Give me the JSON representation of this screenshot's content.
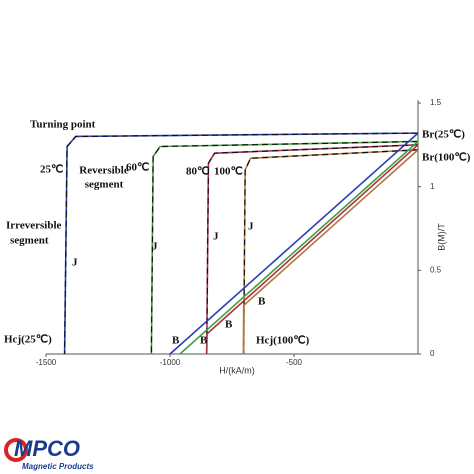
{
  "chart_data": {
    "type": "line",
    "xlabel": "H/(kA/m)",
    "ylabel": "B(M)/T",
    "xlim": [
      -1500,
      0
    ],
    "ylim": [
      0,
      1.5
    ],
    "xticks": [
      -1500,
      -1000,
      -500
    ],
    "yticks": [
      0,
      0.5,
      1,
      1.5
    ],
    "series": [
      {
        "color": "#2b3fb0",
        "x": [
          0,
          -1380,
          -1415,
          -1425
        ],
        "values": [
          1.32,
          1.3,
          1.24,
          0
        ]
      },
      {
        "color": "#3fa33a",
        "x": [
          0,
          -1040,
          -1068,
          -1075
        ],
        "values": [
          1.27,
          1.24,
          1.18,
          0
        ]
      },
      {
        "color": "#b0304a",
        "x": [
          0,
          -820,
          -845,
          -852
        ],
        "values": [
          1.25,
          1.2,
          1.14,
          0
        ]
      },
      {
        "color": "#b07a3a",
        "x": [
          0,
          -675,
          -697,
          -703
        ],
        "values": [
          1.22,
          1.17,
          1.1,
          0
        ]
      },
      {
        "color": "#2b3fb0",
        "x": [
          0,
          -1000
        ],
        "values": [
          1.32,
          0
        ]
      },
      {
        "color": "#3fa33a",
        "x": [
          0,
          -960
        ],
        "values": [
          1.27,
          0
        ]
      },
      {
        "color": "#b0304a",
        "x": [
          0,
          -851,
          -852
        ],
        "values": [
          1.25,
          0.12,
          0
        ]
      },
      {
        "color": "#b07a3a",
        "x": [
          0,
          -703,
          -704
        ],
        "values": [
          1.22,
          0.29,
          0
        ]
      }
    ],
    "annotations": [
      "Turning point",
      "Reversible",
      "segment",
      "25℃",
      "60℃",
      "80℃",
      "100℃",
      "Irreversible",
      "segment",
      "J",
      "J",
      "J",
      "J",
      "B",
      "B",
      "B",
      "B",
      "Br(25℃)",
      "Br(100℃)",
      "Hcj(25℃)",
      "Hcj(100℃)"
    ]
  },
  "logo": {
    "text": "MPCO",
    "subtitle": "Magnetic Products"
  }
}
